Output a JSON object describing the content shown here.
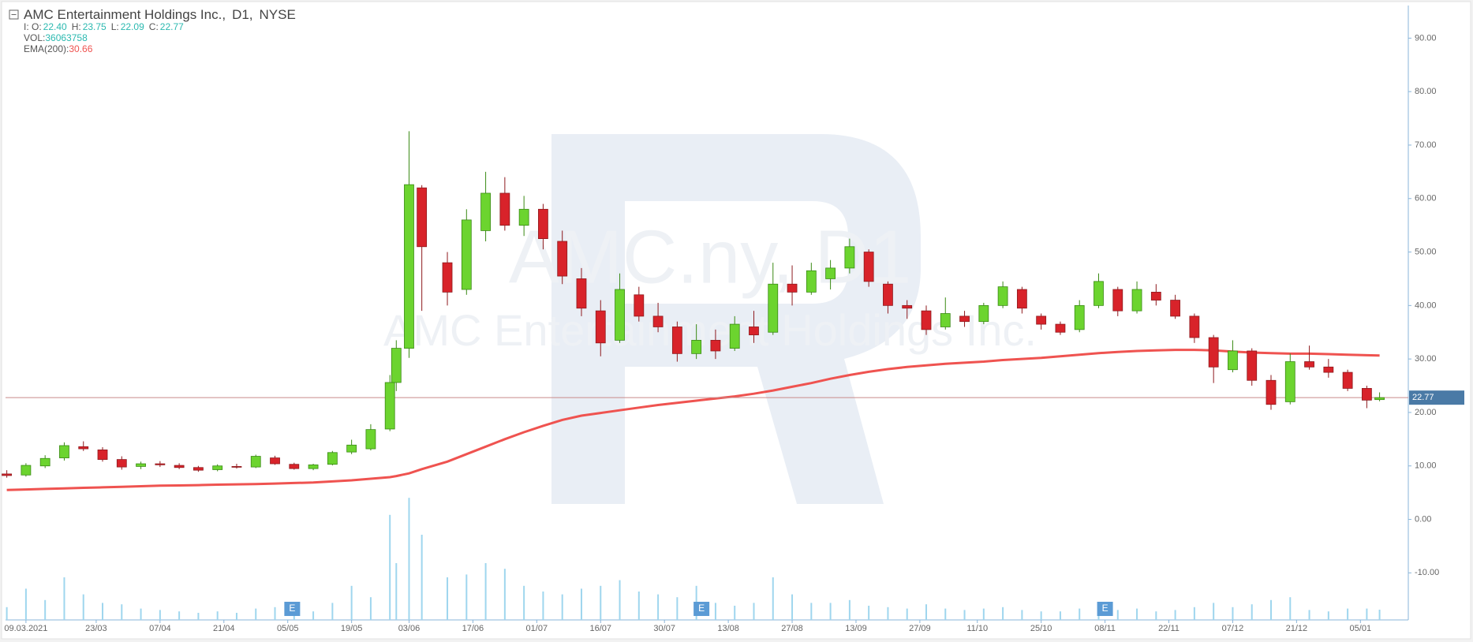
{
  "chart_data": {
    "type": "candlestick",
    "title": "AMC Entertainment Holdings Inc.,",
    "timeframe": "D1,",
    "exchange": "NYSE",
    "legend_ohlc": [
      {
        "label": "I: O:",
        "value": "22.40"
      },
      {
        "label": "H:",
        "value": "23.75"
      },
      {
        "label": "L:",
        "value": "22.09"
      },
      {
        "label": "C:",
        "value": "22.77"
      }
    ],
    "legend_volume": {
      "label": "VOL:",
      "value": "36063758"
    },
    "legend_ema": {
      "label": "EMA(200):",
      "value": "30.66"
    },
    "watermark": [
      "AMC.ny, D1",
      "AMC Entertainment Holdings Inc."
    ],
    "up_color": "#6cd42f",
    "down_color": "#d8232a",
    "ema_color": "#ef5350",
    "volume_color": "#9fd6ee",
    "xlim": [
      -0.2,
      219.5
    ],
    "ylim": [
      -18.8,
      96.1
    ],
    "volume_lim": [
      0,
      500
    ],
    "yticks": [
      {
        "value": 90,
        "label": "90.00"
      },
      {
        "value": 80,
        "label": "80.00"
      },
      {
        "value": 70,
        "label": "70.00"
      },
      {
        "value": 60,
        "label": "60.00"
      },
      {
        "value": 50,
        "label": "50.00"
      },
      {
        "value": 40,
        "label": "40.00"
      },
      {
        "value": 30,
        "label": "30.00"
      },
      {
        "value": 20,
        "label": "20.00"
      },
      {
        "value": 10,
        "label": "10.00"
      },
      {
        "value": 0,
        "label": "0.00"
      },
      {
        "value": -10,
        "label": "-10.00"
      }
    ],
    "xticks": [
      {
        "value": 3,
        "label": "09.03.2021"
      },
      {
        "value": 14,
        "label": "23/03"
      },
      {
        "value": 24,
        "label": "07/04"
      },
      {
        "value": 34,
        "label": "21/04"
      },
      {
        "value": 44,
        "label": "05/05"
      },
      {
        "value": 54,
        "label": "19/05"
      },
      {
        "value": 63,
        "label": "03/06"
      },
      {
        "value": 73,
        "label": "17/06"
      },
      {
        "value": 83,
        "label": "01/07"
      },
      {
        "value": 93,
        "label": "16/07"
      },
      {
        "value": 103,
        "label": "30/07"
      },
      {
        "value": 113,
        "label": "13/08"
      },
      {
        "value": 123,
        "label": "27/08"
      },
      {
        "value": 133,
        "label": "13/09"
      },
      {
        "value": 143,
        "label": "27/09"
      },
      {
        "value": 152,
        "label": "11/10"
      },
      {
        "value": 162,
        "label": "25/10"
      },
      {
        "value": 172,
        "label": "08/11"
      },
      {
        "value": 182,
        "label": "22/11"
      },
      {
        "value": 192,
        "label": "07/12"
      },
      {
        "value": 202,
        "label": "21/12"
      },
      {
        "value": 212,
        "label": "05/01"
      }
    ],
    "x": [
      0,
      3,
      6,
      9,
      12,
      15,
      18,
      21,
      24,
      27,
      30,
      33,
      36,
      39,
      42,
      45,
      48,
      51,
      54,
      57,
      60,
      61,
      63,
      65,
      69,
      72,
      75,
      78,
      81,
      84,
      87,
      90,
      93,
      96,
      99,
      102,
      105,
      108,
      111,
      114,
      117,
      120,
      123,
      126,
      129,
      132,
      135,
      138,
      141,
      144,
      147,
      150,
      153,
      156,
      159,
      162,
      165,
      168,
      171,
      174,
      177,
      180,
      183,
      186,
      189,
      192,
      195,
      198,
      201,
      204,
      207,
      210,
      213,
      215
    ],
    "ohlc": [
      [
        8.5,
        9.2,
        7.8,
        8.2
      ],
      [
        8.3,
        10.5,
        8.0,
        10.1
      ],
      [
        10.0,
        12.0,
        9.6,
        11.4
      ],
      [
        11.5,
        14.4,
        11.0,
        13.8
      ],
      [
        13.6,
        14.6,
        12.8,
        13.2
      ],
      [
        13.0,
        13.5,
        10.8,
        11.2
      ],
      [
        11.2,
        11.8,
        9.3,
        9.8
      ],
      [
        9.9,
        10.8,
        9.4,
        10.4
      ],
      [
        10.4,
        10.9,
        9.8,
        10.2
      ],
      [
        10.1,
        10.5,
        9.4,
        9.7
      ],
      [
        9.7,
        10.0,
        8.9,
        9.2
      ],
      [
        9.3,
        10.3,
        9.0,
        10.0
      ],
      [
        9.9,
        10.4,
        9.5,
        9.8
      ],
      [
        9.8,
        12.1,
        9.6,
        11.8
      ],
      [
        11.5,
        11.9,
        10.2,
        10.4
      ],
      [
        10.3,
        10.6,
        9.3,
        9.5
      ],
      [
        9.5,
        10.4,
        9.2,
        10.2
      ],
      [
        10.3,
        12.8,
        10.1,
        12.5
      ],
      [
        12.6,
        14.9,
        12.2,
        13.9
      ],
      [
        13.2,
        17.8,
        12.9,
        16.8
      ],
      [
        16.9,
        27.0,
        16.5,
        25.6
      ],
      [
        25.6,
        33.5,
        24.0,
        32.0
      ],
      [
        32.0,
        72.6,
        30.2,
        62.6
      ],
      [
        62.0,
        62.5,
        39.0,
        51.0
      ],
      [
        48.0,
        50.0,
        40.0,
        42.5
      ],
      [
        43.0,
        58.0,
        42.0,
        56.0
      ],
      [
        54.0,
        65.0,
        52.0,
        61.0
      ],
      [
        61.0,
        64.0,
        54.0,
        55.0
      ],
      [
        55.0,
        60.5,
        53.0,
        58.0
      ],
      [
        58.0,
        59.0,
        50.5,
        52.5
      ],
      [
        52.0,
        54.0,
        44.0,
        45.5
      ],
      [
        45.0,
        47.0,
        38.0,
        39.5
      ],
      [
        39.0,
        41.0,
        30.5,
        33.0
      ],
      [
        33.5,
        46.0,
        33.0,
        43.0
      ],
      [
        42.0,
        43.5,
        37.0,
        38.0
      ],
      [
        38.0,
        40.5,
        35.0,
        36.0
      ],
      [
        36.0,
        37.0,
        29.5,
        31.0
      ],
      [
        31.0,
        36.5,
        30.0,
        33.5
      ],
      [
        33.5,
        35.5,
        30.0,
        31.5
      ],
      [
        32.0,
        38.0,
        31.5,
        36.5
      ],
      [
        36.0,
        39.0,
        33.0,
        34.5
      ],
      [
        35.0,
        48.0,
        34.5,
        44.0
      ],
      [
        44.0,
        47.5,
        40.0,
        42.5
      ],
      [
        42.5,
        48.0,
        42.0,
        46.5
      ],
      [
        45.0,
        48.5,
        43.0,
        47.0
      ],
      [
        47.0,
        52.5,
        46.0,
        51.0
      ],
      [
        50.0,
        50.5,
        43.5,
        44.5
      ],
      [
        44.0,
        44.5,
        38.5,
        40.0
      ],
      [
        40.0,
        41.0,
        37.5,
        39.5
      ],
      [
        39.0,
        40.0,
        34.5,
        35.5
      ],
      [
        36.0,
        41.5,
        35.5,
        38.5
      ],
      [
        38.0,
        39.0,
        36.0,
        37.0
      ],
      [
        37.0,
        40.5,
        36.5,
        40.0
      ],
      [
        40.0,
        44.5,
        39.5,
        43.5
      ],
      [
        43.0,
        43.5,
        38.5,
        39.5
      ],
      [
        38.0,
        38.5,
        35.5,
        36.5
      ],
      [
        36.5,
        37.0,
        34.5,
        35.0
      ],
      [
        35.5,
        41.0,
        35.0,
        40.0
      ],
      [
        40.0,
        46.0,
        39.5,
        44.5
      ],
      [
        43.0,
        43.5,
        38.0,
        39.0
      ],
      [
        39.0,
        44.5,
        38.5,
        43.0
      ],
      [
        42.5,
        44.0,
        40.0,
        41.0
      ],
      [
        41.0,
        42.0,
        37.5,
        38.0
      ],
      [
        38.0,
        38.5,
        33.0,
        34.0
      ],
      [
        34.0,
        34.5,
        25.5,
        28.5
      ],
      [
        28.0,
        33.5,
        27.5,
        31.5
      ],
      [
        31.5,
        32.0,
        25.0,
        26.0
      ],
      [
        26.0,
        27.0,
        20.5,
        21.5
      ],
      [
        22.0,
        31.0,
        21.5,
        29.5
      ],
      [
        29.5,
        32.5,
        28.0,
        28.5
      ],
      [
        28.5,
        30.0,
        26.5,
        27.5
      ],
      [
        27.5,
        28.0,
        24.0,
        24.5
      ],
      [
        24.5,
        25.0,
        20.8,
        22.3
      ],
      [
        22.4,
        23.75,
        22.09,
        22.77
      ]
    ],
    "volume": [
      45,
      110,
      70,
      150,
      90,
      60,
      55,
      40,
      35,
      30,
      25,
      30,
      25,
      40,
      45,
      35,
      30,
      60,
      120,
      80,
      370,
      200,
      430,
      300,
      150,
      160,
      200,
      180,
      120,
      100,
      90,
      110,
      120,
      140,
      100,
      90,
      80,
      120,
      60,
      50,
      60,
      150,
      90,
      60,
      60,
      70,
      50,
      45,
      40,
      55,
      40,
      35,
      40,
      45,
      35,
      30,
      30,
      40,
      55,
      35,
      40,
      30,
      35,
      45,
      60,
      45,
      55,
      70,
      80,
      35,
      30,
      40,
      40,
      36.06
    ],
    "ema": [
      5.5,
      5.6,
      5.7,
      5.8,
      5.9,
      6.0,
      6.1,
      6.2,
      6.3,
      6.35,
      6.4,
      6.5,
      6.55,
      6.6,
      6.7,
      6.8,
      6.9,
      7.1,
      7.3,
      7.6,
      7.9,
      8.1,
      8.6,
      9.4,
      10.8,
      12.2,
      13.6,
      15.0,
      16.3,
      17.5,
      18.6,
      19.4,
      19.9,
      20.4,
      20.9,
      21.4,
      21.8,
      22.2,
      22.6,
      23.0,
      23.5,
      24.1,
      24.8,
      25.5,
      26.3,
      27.0,
      27.6,
      28.1,
      28.5,
      28.8,
      29.1,
      29.3,
      29.5,
      29.8,
      30.0,
      30.2,
      30.5,
      30.8,
      31.1,
      31.3,
      31.5,
      31.6,
      31.7,
      31.7,
      31.6,
      31.4,
      31.2,
      31.1,
      31.0,
      31.0,
      30.9,
      30.8,
      30.7,
      30.66
    ],
    "events": [
      {
        "x": 44.7,
        "label": "E"
      },
      {
        "x": 108.8,
        "label": "E"
      },
      {
        "x": 172,
        "label": "E"
      }
    ],
    "current_price": {
      "value": 22.77,
      "label": "22.77"
    }
  }
}
